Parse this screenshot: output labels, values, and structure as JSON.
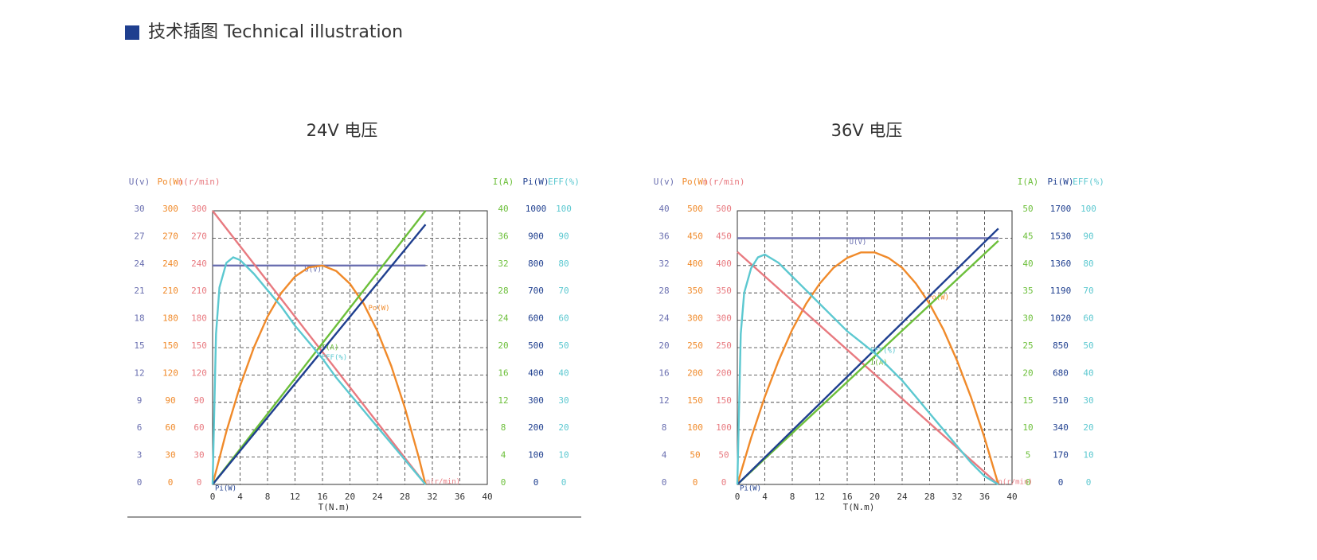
{
  "header": {
    "title": "技术插图 Technical illustration"
  },
  "chart_data": [
    {
      "type": "line",
      "title": "24V 电压",
      "xlabel": "T(N.m)",
      "xlim": [
        0,
        40
      ],
      "xticks": [
        0,
        4,
        8,
        12,
        16,
        20,
        24,
        28,
        32,
        36,
        40
      ],
      "yaxes": [
        {
          "label": "U(v)",
          "color": "#6a6fb0",
          "side": "left",
          "ylim": [
            0,
            30
          ],
          "yticks": [
            0,
            3,
            6,
            9,
            12,
            15,
            18,
            21,
            24,
            27,
            30
          ]
        },
        {
          "label": "Po(W)",
          "color": "#f08a2a",
          "side": "left",
          "ylim": [
            0,
            300
          ],
          "yticks": [
            0,
            30,
            60,
            90,
            120,
            150,
            180,
            210,
            240,
            270,
            300
          ]
        },
        {
          "label": "n(r/min)",
          "color": "#e87a80",
          "side": "left",
          "ylim": [
            0,
            300
          ],
          "yticks": [
            0,
            30,
            60,
            90,
            120,
            150,
            180,
            210,
            240,
            270,
            300
          ]
        },
        {
          "label": "I(A)",
          "color": "#6cbf3a",
          "side": "right",
          "ylim": [
            0,
            40
          ],
          "yticks": [
            0,
            4,
            8,
            12,
            16,
            20,
            24,
            28,
            32,
            36,
            40
          ]
        },
        {
          "label": "Pi(W)",
          "color": "#1f3f8f",
          "side": "right",
          "ylim": [
            0,
            1000
          ],
          "yticks": [
            0,
            100,
            200,
            300,
            400,
            500,
            600,
            700,
            800,
            900,
            1000
          ]
        },
        {
          "label": "EFF(%)",
          "color": "#5cc8d0",
          "side": "right",
          "ylim": [
            0,
            100
          ],
          "yticks": [
            0,
            10,
            20,
            30,
            40,
            50,
            60,
            70,
            80,
            90,
            100
          ]
        }
      ],
      "grid": true,
      "series": [
        {
          "name": "U(V)",
          "color": "#6a6fb0",
          "axis": 0,
          "x": [
            0,
            31
          ],
          "values": [
            24,
            24
          ]
        },
        {
          "name": "Po(W)",
          "color": "#f08a2a",
          "axis": 1,
          "x": [
            0,
            2,
            4,
            6,
            8,
            10,
            12,
            14,
            16,
            18,
            20,
            22,
            24,
            26,
            28,
            30,
            31
          ],
          "values": [
            0,
            58,
            108,
            150,
            184,
            210,
            228,
            238,
            240,
            234,
            220,
            198,
            168,
            130,
            84,
            30,
            0
          ]
        },
        {
          "name": "n(r/min)",
          "color": "#e87a80",
          "axis": 2,
          "x": [
            0,
            31
          ],
          "values": [
            300,
            0
          ]
        },
        {
          "name": "I(A)",
          "color": "#6cbf3a",
          "axis": 3,
          "x": [
            0,
            31
          ],
          "values": [
            0,
            40
          ]
        },
        {
          "name": "Pi(W)",
          "color": "#1f3f8f",
          "axis": 4,
          "x": [
            0,
            31
          ],
          "values": [
            0,
            950
          ]
        },
        {
          "name": "EFF(%)",
          "color": "#5cc8d0",
          "axis": 5,
          "x": [
            0,
            0.5,
            1,
            2,
            3,
            4,
            6,
            8,
            10,
            12,
            14,
            16,
            18,
            20,
            22,
            24,
            26,
            28,
            30,
            31
          ],
          "values": [
            0,
            55,
            72,
            81,
            83,
            82,
            77,
            71,
            65,
            58,
            52,
            46,
            39,
            33,
            27,
            21,
            15,
            9,
            3,
            0
          ]
        }
      ]
    },
    {
      "type": "line",
      "title": "36V 电压",
      "xlabel": "T(N.m)",
      "xlim": [
        0,
        40
      ],
      "xticks": [
        0,
        4,
        8,
        12,
        16,
        20,
        24,
        28,
        32,
        36,
        40
      ],
      "yaxes": [
        {
          "label": "U(v)",
          "color": "#6a6fb0",
          "side": "left",
          "ylim": [
            0,
            40
          ],
          "yticks": [
            0,
            4,
            8,
            12,
            16,
            20,
            24,
            28,
            32,
            36,
            40
          ]
        },
        {
          "label": "Po(W)",
          "color": "#f08a2a",
          "side": "left",
          "ylim": [
            0,
            500
          ],
          "yticks": [
            0,
            50,
            100,
            150,
            200,
            250,
            300,
            350,
            400,
            450,
            500
          ]
        },
        {
          "label": "n(r/min)",
          "color": "#e87a80",
          "side": "left",
          "ylim": [
            0,
            500
          ],
          "yticks": [
            0,
            50,
            100,
            150,
            200,
            250,
            300,
            350,
            400,
            450,
            500
          ]
        },
        {
          "label": "I(A)",
          "color": "#6cbf3a",
          "side": "right",
          "ylim": [
            0,
            50
          ],
          "yticks": [
            0,
            5,
            10,
            15,
            20,
            25,
            30,
            35,
            40,
            45,
            50
          ]
        },
        {
          "label": "Pi(W)",
          "color": "#1f3f8f",
          "side": "right",
          "ylim": [
            0,
            1700
          ],
          "yticks": [
            0,
            170,
            340,
            510,
            680,
            850,
            1020,
            1190,
            1360,
            1530,
            1700
          ]
        },
        {
          "label": "EFF(%)",
          "color": "#5cc8d0",
          "side": "right",
          "ylim": [
            0,
            100
          ],
          "yticks": [
            0,
            10,
            20,
            30,
            40,
            50,
            60,
            70,
            80,
            90,
            100
          ]
        }
      ],
      "grid": true,
      "series": [
        {
          "name": "U(V)",
          "color": "#6a6fb0",
          "axis": 0,
          "x": [
            0,
            38
          ],
          "values": [
            36,
            36
          ]
        },
        {
          "name": "Po(W)",
          "color": "#f08a2a",
          "axis": 1,
          "x": [
            0,
            2,
            4,
            6,
            8,
            10,
            12,
            14,
            16,
            18,
            20,
            22,
            24,
            26,
            28,
            30,
            32,
            34,
            36,
            38
          ],
          "values": [
            0,
            85,
            160,
            226,
            283,
            330,
            367,
            396,
            414,
            424,
            424,
            414,
            396,
            367,
            330,
            283,
            226,
            160,
            85,
            0
          ]
        },
        {
          "name": "n(r/min)",
          "color": "#e87a80",
          "axis": 2,
          "x": [
            0,
            38
          ],
          "values": [
            425,
            0
          ]
        },
        {
          "name": "I(A)",
          "color": "#6cbf3a",
          "axis": 3,
          "x": [
            0,
            38
          ],
          "values": [
            0,
            44.5
          ]
        },
        {
          "name": "Pi(W)",
          "color": "#1f3f8f",
          "axis": 4,
          "x": [
            0,
            38
          ],
          "values": [
            0,
            1590
          ]
        },
        {
          "name": "EFF(%)",
          "color": "#5cc8d0",
          "axis": 5,
          "x": [
            0,
            0.5,
            1,
            2,
            3,
            4,
            6,
            8,
            10,
            12,
            14,
            16,
            18,
            20,
            22,
            24,
            26,
            28,
            30,
            32,
            34,
            36,
            38
          ],
          "values": [
            0,
            55,
            70,
            79,
            83,
            84,
            81,
            76,
            71,
            66,
            61,
            56,
            52,
            48,
            43,
            38,
            32,
            26,
            20,
            14,
            8,
            3,
            0
          ]
        }
      ]
    }
  ]
}
